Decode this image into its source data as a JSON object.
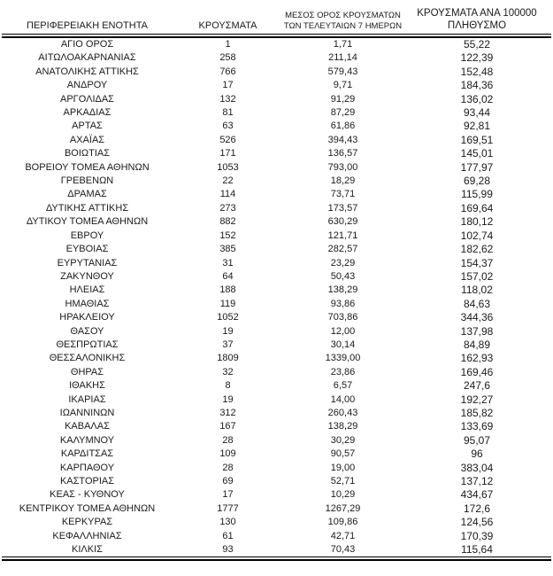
{
  "colors": {
    "background": "#ffffff",
    "text": "#1a1a1a",
    "rule": "#000000"
  },
  "table": {
    "column_keys": [
      "region",
      "cases",
      "avg_7day",
      "per_100k"
    ],
    "headers": {
      "region": "ΠΕΡΙΦΕΡΕΙΑΚΗ ΕΝΟΤΗΤΑ",
      "cases": "ΚΡΟΥΣΜΑΤΑ",
      "avg_7day_line1": "ΜΕΣΟΣ ΟΡΟΣ ΚΡΟΥΣΜΑΤΩΝ",
      "avg_7day_line2": "ΤΩΝ ΤΕΛΕΥΤΑΙΩΝ 7 ΗΜΕΡΩΝ",
      "per_100k_line1": "ΚΡΟΥΣΜΑΤΑ ΑΝΑ 100000",
      "per_100k_line2": "ΠΛΗΘΥΣΜΟ"
    },
    "rows": [
      [
        "ΑΓΙΟ ΟΡΟΣ",
        "1",
        "1,71",
        "55,22"
      ],
      [
        "ΑΙΤΩΛΟΑΚΑΡΝΑΝΙΑΣ",
        "258",
        "211,14",
        "122,39"
      ],
      [
        "ΑΝΑΤΟΛΙΚΗΣ ΑΤΤΙΚΗΣ",
        "766",
        "579,43",
        "152,48"
      ],
      [
        "ΑΝΔΡΟΥ",
        "17",
        "9,71",
        "184,36"
      ],
      [
        "ΑΡΓΟΛΙΔΑΣ",
        "132",
        "91,29",
        "136,02"
      ],
      [
        "ΑΡΚΑΔΙΑΣ",
        "81",
        "87,29",
        "93,44"
      ],
      [
        "ΑΡΤΑΣ",
        "63",
        "61,86",
        "92,81"
      ],
      [
        "ΑΧΑΪΑΣ",
        "526",
        "394,43",
        "169,51"
      ],
      [
        "ΒΟΙΩΤΙΑΣ",
        "171",
        "136,57",
        "145,01"
      ],
      [
        "ΒΟΡΕΙΟΥ ΤΟΜΕΑ ΑΘΗΝΩΝ",
        "1053",
        "793,00",
        "177,97"
      ],
      [
        "ΓΡΕΒΕΝΩΝ",
        "22",
        "18,29",
        "69,28"
      ],
      [
        "ΔΡΑΜΑΣ",
        "114",
        "73,71",
        "115,99"
      ],
      [
        "ΔΥΤΙΚΗΣ ΑΤΤΙΚΗΣ",
        "273",
        "173,57",
        "169,64"
      ],
      [
        "ΔΥΤΙΚΟΥ ΤΟΜΕΑ ΑΘΗΝΩΝ",
        "882",
        "630,29",
        "180,12"
      ],
      [
        "ΕΒΡΟΥ",
        "152",
        "121,71",
        "102,74"
      ],
      [
        "ΕΥΒΟΙΑΣ",
        "385",
        "282,57",
        "182,62"
      ],
      [
        "ΕΥΡΥΤΑΝΙΑΣ",
        "31",
        "23,29",
        "154,37"
      ],
      [
        "ΖΑΚΥΝΘΟΥ",
        "64",
        "50,43",
        "157,02"
      ],
      [
        "ΗΛΕΙΑΣ",
        "188",
        "138,29",
        "118,02"
      ],
      [
        "ΗΜΑΘΙΑΣ",
        "119",
        "93,86",
        "84,63"
      ],
      [
        "ΗΡΑΚΛΕΙΟΥ",
        "1052",
        "703,86",
        "344,36"
      ],
      [
        "ΘΑΣΟΥ",
        "19",
        "12,00",
        "137,98"
      ],
      [
        "ΘΕΣΠΡΩΤΙΑΣ",
        "37",
        "30,14",
        "84,89"
      ],
      [
        "ΘΕΣΣΑΛΟΝΙΚΗΣ",
        "1809",
        "1339,00",
        "162,93"
      ],
      [
        "ΘΗΡΑΣ",
        "32",
        "23,86",
        "169,46"
      ],
      [
        "ΙΘΑΚΗΣ",
        "8",
        "6,57",
        "247,6"
      ],
      [
        "ΙΚΑΡΙΑΣ",
        "19",
        "14,00",
        "192,27"
      ],
      [
        "ΙΩΑΝΝΙΝΩΝ",
        "312",
        "260,43",
        "185,82"
      ],
      [
        "ΚΑΒΑΛΑΣ",
        "167",
        "138,29",
        "133,69"
      ],
      [
        "ΚΑΛΥΜΝΟΥ",
        "28",
        "30,29",
        "95,07"
      ],
      [
        "ΚΑΡΔΙΤΣΑΣ",
        "109",
        "90,57",
        "96"
      ],
      [
        "ΚΑΡΠΑΘΟΥ",
        "28",
        "19,00",
        "383,04"
      ],
      [
        "ΚΑΣΤΟΡΙΑΣ",
        "69",
        "52,71",
        "137,12"
      ],
      [
        "ΚΕΑΣ - ΚΥΘΝΟΥ",
        "17",
        "10,29",
        "434,67"
      ],
      [
        "ΚΕΝΤΡΙΚΟΥ ΤΟΜΕΑ ΑΘΗΝΩΝ",
        "1777",
        "1267,29",
        "172,6"
      ],
      [
        "ΚΕΡΚΥΡΑΣ",
        "130",
        "109,86",
        "124,56"
      ],
      [
        "ΚΕΦΑΛΛΗΝΙΑΣ",
        "61",
        "42,71",
        "170,39"
      ],
      [
        "ΚΙΛΚΙΣ",
        "93",
        "70,43",
        "115,64"
      ]
    ]
  }
}
